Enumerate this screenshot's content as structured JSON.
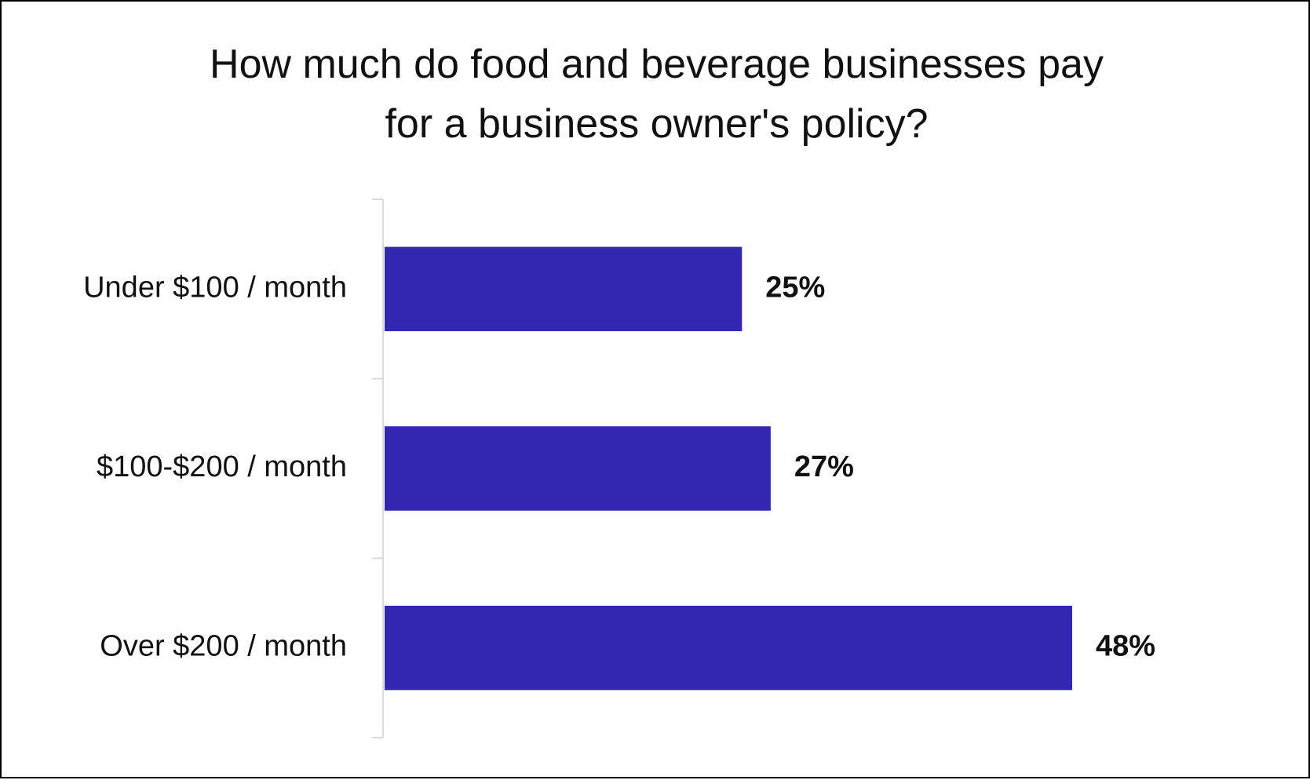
{
  "chart_data": {
    "type": "bar",
    "orientation": "horizontal",
    "title_lines": [
      "How much do food and beverage businesses pay",
      "for a business owner's policy?"
    ],
    "categories": [
      "Under $100 / month",
      "$100-$200 / month",
      "Over $200 / month"
    ],
    "values": [
      25,
      27,
      48
    ],
    "value_labels": [
      "25%",
      "27%",
      "48%"
    ],
    "unit": "%",
    "xlim": [
      0,
      48
    ],
    "xlabel": "",
    "ylabel": "",
    "grid": false,
    "legend": "none",
    "bar_color": "#3127b0",
    "axis_color": "#d9d9d9"
  }
}
